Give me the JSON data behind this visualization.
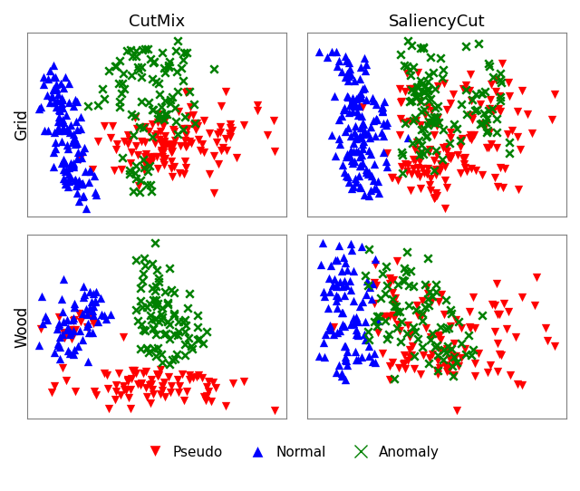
{
  "title_cutmix": "CutMix",
  "title_saliencycut": "SaliencyCut",
  "row_labels": [
    "Grid",
    "Wood"
  ],
  "legend_labels": [
    "Pseudo",
    "Normal",
    "Anomaly"
  ],
  "colors": {
    "pseudo": "#FF0000",
    "normal": "#0000FF",
    "anomaly": "#008000"
  },
  "marker_size": 45,
  "title_fontsize": 13,
  "label_fontsize": 12,
  "legend_fontsize": 11,
  "background_color": "#FFFFFF"
}
